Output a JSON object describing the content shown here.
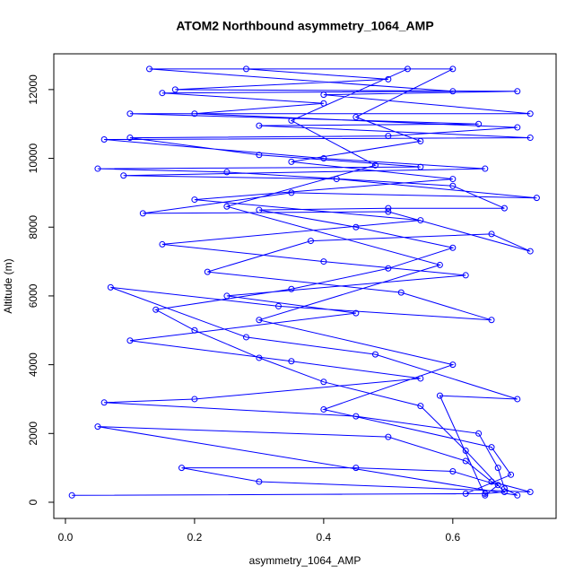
{
  "chart_data": {
    "type": "line",
    "markers": true,
    "title": "ATOM2 Northbound asymmetry_1064_AMP",
    "x_label": "asymmetry_1064_AMP",
    "y_label": "Altitude (m)",
    "color": "#0000ff",
    "xlim": [
      -0.018,
      0.76
    ],
    "ylim": [
      -470,
      13040
    ],
    "xticks": [
      {
        "value": 0,
        "label": "0.0"
      },
      0.2,
      0.4,
      0.6
    ],
    "yticks": [
      0,
      2000,
      4000,
      6000,
      8000,
      10000,
      12000
    ],
    "x": [
      0.01,
      0.65,
      0.68,
      0.62,
      0.55,
      0.4,
      0.3,
      0.2,
      0.14,
      0.35,
      0.5,
      0.6,
      0.45,
      0.3,
      0.5,
      0.68,
      0.6,
      0.25,
      0.05,
      0.55,
      0.3,
      0.1,
      0.5,
      0.7,
      0.2,
      0.4,
      0.15,
      0.6,
      0.13,
      0.6,
      0.45,
      0.55,
      0.35,
      0.6,
      0.2,
      0.55,
      0.15,
      0.4,
      0.62,
      0.25,
      0.45,
      0.1,
      0.35,
      0.55,
      0.2,
      0.06,
      0.45,
      0.64,
      0.67,
      0.68,
      0.7,
      0.05,
      0.5,
      0.62,
      0.66,
      0.72,
      0.3,
      0.18,
      0.45,
      0.6,
      0.67,
      0.65,
      0.58,
      0.7,
      0.48,
      0.28,
      0.07,
      0.33,
      0.66,
      0.52,
      0.22,
      0.38,
      0.66,
      0.72,
      0.5,
      0.12,
      0.35,
      0.73,
      0.42,
      0.09,
      0.65,
      0.4,
      0.06,
      0.72,
      0.3,
      0.64,
      0.1,
      0.72,
      0.4,
      0.7,
      0.17,
      0.5,
      0.28,
      0.53,
      0.35,
      0.48,
      0.25,
      0.58,
      0.3,
      0.6,
      0.4,
      0.66,
      0.69,
      0.62
    ],
    "values": [
      200,
      250,
      300,
      1500,
      2800,
      3500,
      4200,
      5000,
      5600,
      6200,
      6800,
      7400,
      8000,
      8500,
      8550,
      8550,
      9200,
      9600,
      9700,
      9750,
      10100,
      10600,
      10650,
      10900,
      11300,
      11600,
      11900,
      11950,
      12600,
      12600,
      11200,
      10500,
      9900,
      9400,
      8800,
      8200,
      7500,
      7000,
      6600,
      6000,
      5500,
      4700,
      4100,
      3600,
      3000,
      2900,
      2500,
      2000,
      1000,
      400,
      200,
      2200,
      1900,
      1200,
      600,
      300,
      600,
      1000,
      1000,
      900,
      500,
      200,
      3100,
      3000,
      4300,
      4800,
      6250,
      5700,
      5300,
      6100,
      6700,
      7600,
      7800,
      7300,
      8450,
      8400,
      9000,
      8850,
      9400,
      9500,
      9700,
      10000,
      10550,
      10600,
      10950,
      11000,
      11300,
      11300,
      11850,
      11950,
      12000,
      12300,
      12600,
      12600,
      11100,
      9800,
      8600,
      6900,
      5300,
      4000,
      2700,
      1600,
      800,
      250
    ]
  }
}
